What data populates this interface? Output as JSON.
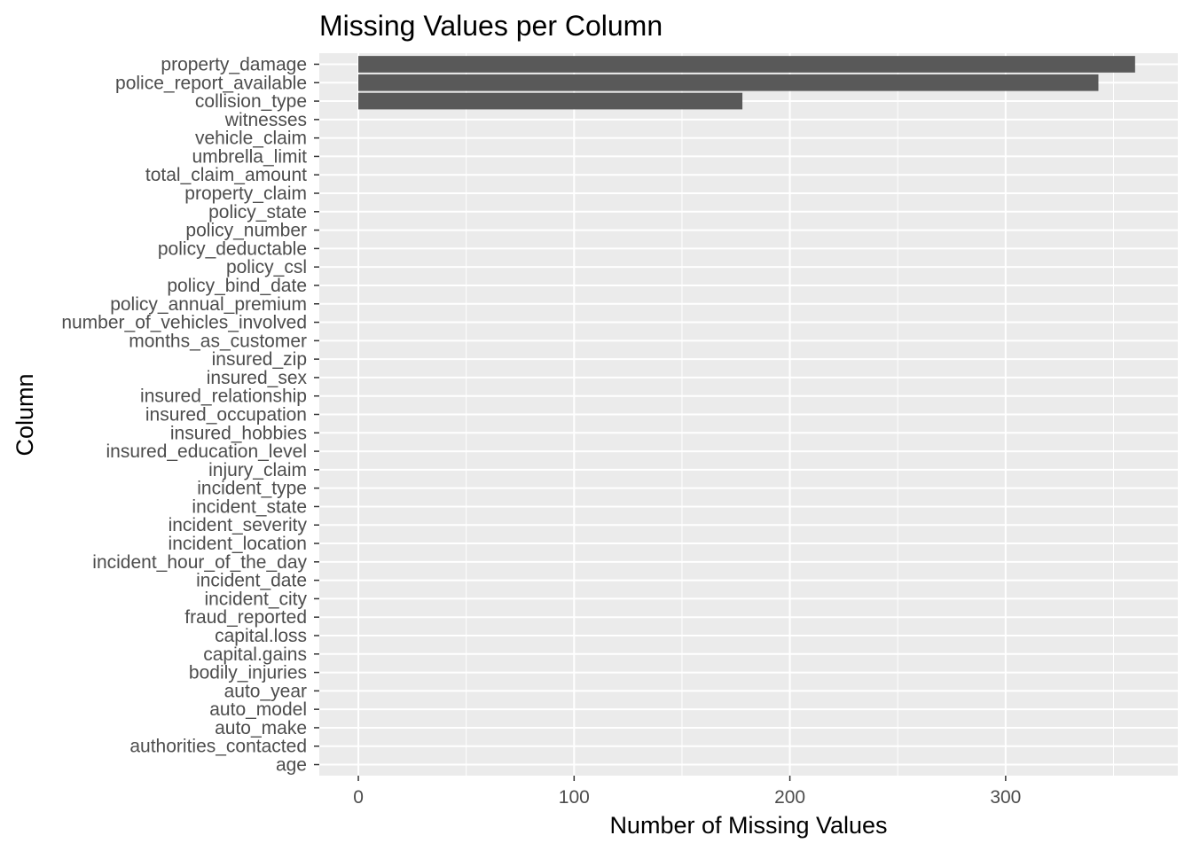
{
  "chart_data": {
    "type": "bar",
    "orientation": "horizontal",
    "title": "Missing Values per Column",
    "xlabel": "Number of Missing Values",
    "ylabel": "Column",
    "xlim": [
      -18.1,
      379.8
    ],
    "xticks": [
      0,
      100,
      200,
      300
    ],
    "grid": true,
    "legend": "none",
    "categories": [
      "age",
      "authorities_contacted",
      "auto_make",
      "auto_model",
      "auto_year",
      "bodily_injuries",
      "capital.gains",
      "capital.loss",
      "fraud_reported",
      "incident_city",
      "incident_date",
      "incident_hour_of_the_day",
      "incident_location",
      "incident_severity",
      "incident_state",
      "incident_type",
      "injury_claim",
      "insured_education_level",
      "insured_hobbies",
      "insured_occupation",
      "insured_relationship",
      "insured_sex",
      "insured_zip",
      "months_as_customer",
      "number_of_vehicles_involved",
      "policy_annual_premium",
      "policy_bind_date",
      "policy_csl",
      "policy_deductable",
      "policy_number",
      "policy_state",
      "property_claim",
      "total_claim_amount",
      "umbrella_limit",
      "vehicle_claim",
      "witnesses",
      "collision_type",
      "police_report_available",
      "property_damage"
    ],
    "values": [
      0,
      0,
      0,
      0,
      0,
      0,
      0,
      0,
      0,
      0,
      0,
      0,
      0,
      0,
      0,
      0,
      0,
      0,
      0,
      0,
      0,
      0,
      0,
      0,
      0,
      0,
      0,
      0,
      0,
      0,
      0,
      0,
      0,
      0,
      0,
      0,
      178,
      343,
      360
    ]
  },
  "colors": {
    "panel_background": "#ebebeb",
    "grid_major": "#ffffff",
    "bar_fill": "#595959",
    "tick_text": "#4d4d4d",
    "tick_mark": "#333333",
    "title_text": "#000000"
  }
}
